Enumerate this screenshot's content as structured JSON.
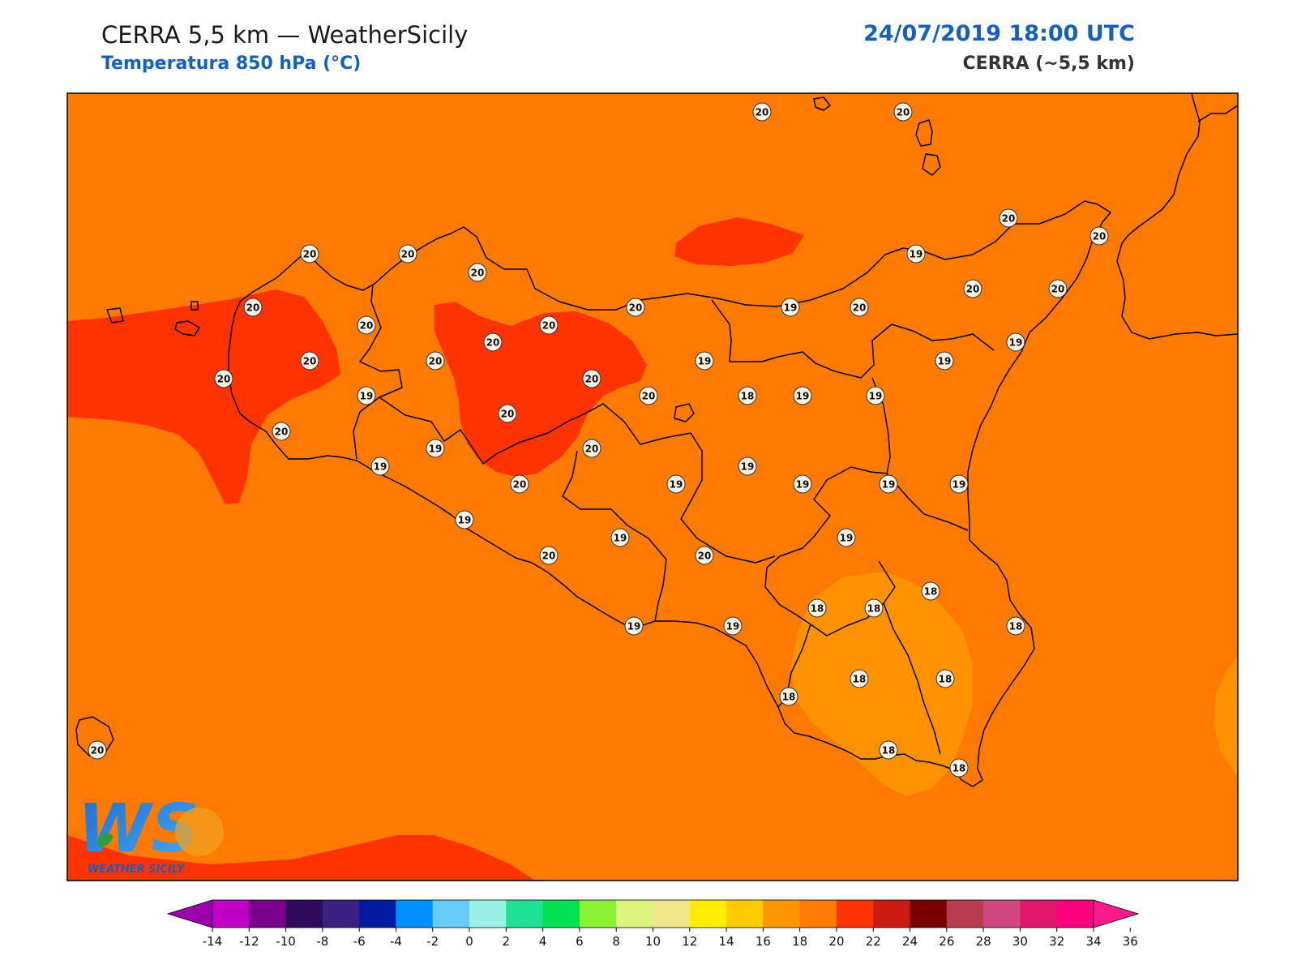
{
  "header": {
    "title": "CERRA 5,5 km — WeatherSicily",
    "subtitle": "Temperatura 850 hPa (°C)",
    "datetime": "24/07/2019 18:00 UTC",
    "model": "CERRA (~5,5 km)"
  },
  "logo": {
    "mark": "WS",
    "name": "WEATHER SICILY",
    "icon": "weather-sicily-logo"
  },
  "colors": {
    "background_field": "#ff7a00",
    "warm_field": "#ff3300",
    "cool_field": "#ff9200",
    "coastline": "#000000"
  },
  "map_regions": [
    {
      "name": "west-sicily-warm-core",
      "class": "20-22"
    },
    {
      "name": "north-central-warm-core",
      "class": "20-22"
    },
    {
      "name": "tyrrhenian-warm-patch",
      "class": "20-22"
    },
    {
      "name": "southwest-warm-band",
      "class": "20-22"
    },
    {
      "name": "southeast-cool-zone",
      "class": "16-18"
    },
    {
      "name": "east-edge-cool-zone",
      "class": "16-18"
    }
  ],
  "stations": [
    {
      "value": "20"
    },
    {
      "value": "20"
    },
    {
      "value": "20"
    },
    {
      "value": "20"
    },
    {
      "value": "20"
    },
    {
      "value": "20"
    },
    {
      "value": "20"
    },
    {
      "value": "20"
    },
    {
      "value": "20"
    },
    {
      "value": "20"
    },
    {
      "value": "19"
    },
    {
      "value": "20"
    },
    {
      "value": "19"
    },
    {
      "value": "20"
    },
    {
      "value": "20"
    },
    {
      "value": "20"
    },
    {
      "value": "20"
    },
    {
      "value": "20"
    },
    {
      "value": "20"
    },
    {
      "value": "19"
    },
    {
      "value": "20"
    },
    {
      "value": "20"
    },
    {
      "value": "20"
    },
    {
      "value": "19"
    },
    {
      "value": "20"
    },
    {
      "value": "18"
    },
    {
      "value": "19"
    },
    {
      "value": "19"
    },
    {
      "value": "19"
    },
    {
      "value": "19"
    },
    {
      "value": "20"
    },
    {
      "value": "20"
    },
    {
      "value": "19"
    },
    {
      "value": "20"
    },
    {
      "value": "19"
    },
    {
      "value": "19"
    },
    {
      "value": "19"
    },
    {
      "value": "19"
    },
    {
      "value": "19"
    },
    {
      "value": "19"
    },
    {
      "value": "19"
    },
    {
      "value": "20"
    },
    {
      "value": "20"
    },
    {
      "value": "19"
    },
    {
      "value": "19"
    },
    {
      "value": "18"
    },
    {
      "value": "18"
    },
    {
      "value": "18"
    },
    {
      "value": "18"
    },
    {
      "value": "19"
    },
    {
      "value": "19"
    },
    {
      "value": "18"
    },
    {
      "value": "18"
    },
    {
      "value": "18"
    },
    {
      "value": "18"
    },
    {
      "value": "18"
    },
    {
      "value": "20"
    }
  ],
  "colorbar": {
    "ticks": [
      "-14",
      "-12",
      "-10",
      "-8",
      "-6",
      "-4",
      "-2",
      "0",
      "2",
      "4",
      "6",
      "8",
      "10",
      "12",
      "14",
      "16",
      "18",
      "20",
      "22",
      "24",
      "26",
      "28",
      "30",
      "32",
      "34",
      "36"
    ],
    "colors": [
      "#c000c8",
      "#7a008c",
      "#2e0a5a",
      "#3a2080",
      "#001aa0",
      "#0090ff",
      "#66ccf5",
      "#99f2e6",
      "#1ee096",
      "#00e050",
      "#8af034",
      "#def27e",
      "#f0e68c",
      "#ffee00",
      "#ffcc00",
      "#ff9500",
      "#ff7a00",
      "#ff3300",
      "#cc1a10",
      "#7a0000",
      "#b83c50",
      "#d04880",
      "#e0186a",
      "#ff0080"
    ],
    "extend_low_color": "#9c00aa",
    "extend_high_color": "#ff1a8c"
  }
}
